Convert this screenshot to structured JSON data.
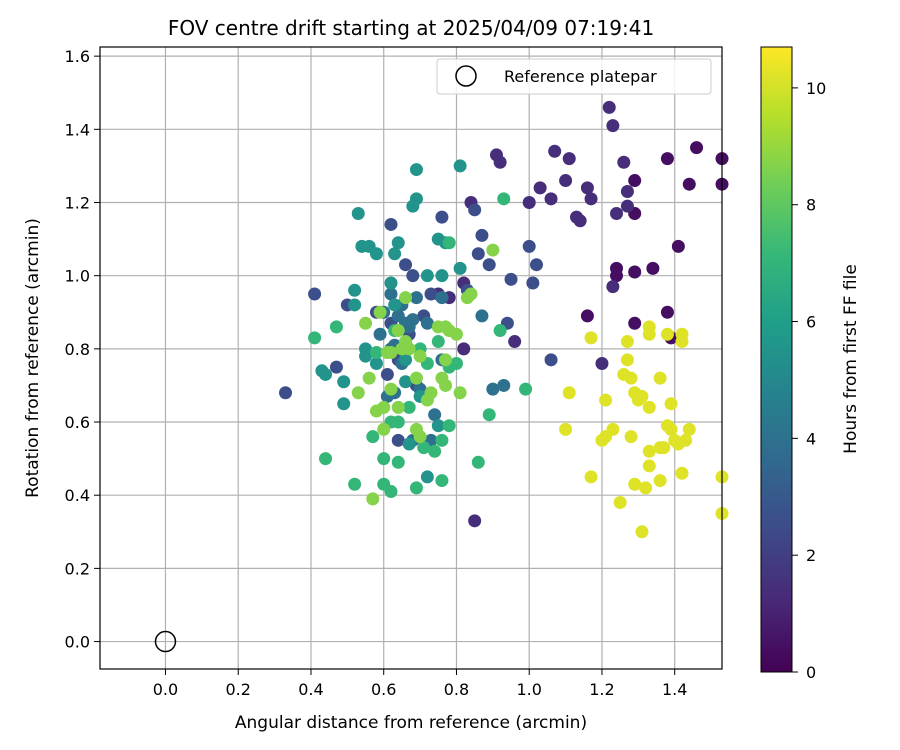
{
  "chart_data": {
    "type": "scatter",
    "title": "FOV centre drift starting at 2025/04/09 07:19:41",
    "xlabel": "Angular distance from reference (arcmin)",
    "ylabel": "Rotation from reference (arcmin)",
    "xlim": [
      -0.18,
      1.53
    ],
    "ylim": [
      -0.075,
      1.625
    ],
    "x_ticks": [
      0.0,
      0.2,
      0.4,
      0.6,
      0.8,
      1.0,
      1.2,
      1.4
    ],
    "y_ticks": [
      0.0,
      0.2,
      0.4,
      0.6,
      0.8,
      1.0,
      1.2,
      1.4,
      1.6
    ],
    "grid": true,
    "legend": {
      "position": "top-right",
      "entries": [
        "Reference platepar"
      ]
    },
    "reference_point": {
      "x": 0.0,
      "y": 0.0,
      "marker": "open-circle"
    },
    "colorbar": {
      "label": "Hours from first FF file",
      "colormap": "viridis",
      "range": [
        0,
        10.7
      ],
      "ticks": [
        0,
        2,
        4,
        6,
        8,
        10
      ]
    },
    "colormap_stops": [
      "#440154",
      "#482878",
      "#3e4989",
      "#31688e",
      "#26828e",
      "#1f9e89",
      "#35b779",
      "#6ece58",
      "#b5de2b",
      "#fde725"
    ],
    "point_sets": [
      {
        "hours": 0.4,
        "points": [
          [
            1.46,
            1.35
          ],
          [
            1.44,
            1.25
          ],
          [
            1.53,
            1.32
          ],
          [
            1.53,
            1.25
          ],
          [
            1.38,
            1.32
          ],
          [
            1.41,
            1.08
          ],
          [
            1.34,
            1.02
          ],
          [
            1.29,
            1.17
          ],
          [
            1.29,
            1.26
          ],
          [
            1.24,
            1.02
          ],
          [
            1.29,
            1.01
          ],
          [
            1.29,
            0.87
          ],
          [
            1.38,
            0.9
          ],
          [
            1.39,
            0.83
          ],
          [
            1.16,
            0.89
          ],
          [
            1.24,
            1.0
          ]
        ]
      },
      {
        "hours": 1.4,
        "points": [
          [
            1.22,
            1.46
          ],
          [
            1.23,
            1.41
          ],
          [
            1.26,
            1.31
          ],
          [
            1.27,
            1.23
          ],
          [
            1.27,
            1.19
          ],
          [
            1.24,
            1.17
          ],
          [
            1.16,
            1.24
          ],
          [
            1.17,
            1.21
          ],
          [
            1.13,
            1.16
          ],
          [
            1.14,
            1.15
          ],
          [
            1.1,
            1.26
          ],
          [
            1.11,
            1.32
          ],
          [
            1.07,
            1.34
          ],
          [
            1.06,
            1.21
          ],
          [
            1.03,
            1.24
          ],
          [
            1.0,
            1.2
          ],
          [
            0.91,
            1.33
          ],
          [
            0.92,
            1.31
          ],
          [
            0.84,
            1.2
          ],
          [
            0.82,
            0.98
          ],
          [
            0.78,
            0.94
          ],
          [
            0.82,
            0.8
          ],
          [
            0.96,
            0.82
          ],
          [
            1.23,
            0.97
          ],
          [
            1.2,
            0.76
          ],
          [
            0.85,
            0.33
          ],
          [
            0.75,
            0.95
          ]
        ]
      },
      {
        "hours": 2.6,
        "points": [
          [
            0.41,
            0.95
          ],
          [
            0.33,
            0.68
          ],
          [
            0.47,
            0.75
          ],
          [
            0.5,
            0.92
          ],
          [
            0.62,
            1.14
          ],
          [
            0.66,
            1.03
          ],
          [
            0.68,
            1.0
          ],
          [
            0.76,
            1.16
          ],
          [
            0.87,
            1.11
          ],
          [
            0.85,
            1.18
          ],
          [
            0.86,
            1.06
          ],
          [
            0.89,
            1.03
          ],
          [
            1.0,
            1.08
          ],
          [
            1.02,
            1.03
          ],
          [
            1.01,
            0.98
          ],
          [
            0.95,
            0.99
          ],
          [
            0.94,
            0.87
          ],
          [
            1.06,
            0.77
          ],
          [
            0.83,
            0.96
          ],
          [
            0.73,
            0.95
          ],
          [
            0.71,
            0.89
          ],
          [
            0.67,
            0.84
          ],
          [
            0.62,
            0.87
          ],
          [
            0.58,
            0.9
          ],
          [
            0.64,
            0.77
          ],
          [
            0.69,
            0.7
          ],
          [
            0.61,
            0.73
          ],
          [
            0.64,
            0.55
          ]
        ]
      },
      {
        "hours": 4.0,
        "points": [
          [
            0.6,
            0.9
          ],
          [
            0.64,
            0.89
          ],
          [
            0.67,
            0.86
          ],
          [
            0.66,
            0.87
          ],
          [
            0.65,
            0.92
          ],
          [
            0.68,
            0.88
          ],
          [
            0.69,
            0.94
          ],
          [
            0.62,
            0.95
          ],
          [
            0.62,
            0.8
          ],
          [
            0.59,
            0.84
          ],
          [
            0.65,
            0.76
          ],
          [
            0.63,
            0.81
          ],
          [
            0.72,
            0.87
          ],
          [
            0.63,
            0.68
          ],
          [
            0.7,
            0.69
          ],
          [
            0.76,
            0.77
          ],
          [
            0.74,
            0.62
          ],
          [
            0.68,
            0.55
          ],
          [
            0.73,
            0.55
          ],
          [
            0.9,
            0.69
          ],
          [
            0.93,
            0.7
          ],
          [
            0.87,
            0.89
          ],
          [
            0.76,
            0.94
          ],
          [
            0.61,
            0.67
          ]
        ]
      },
      {
        "hours": 5.5,
        "points": [
          [
            0.53,
            1.17
          ],
          [
            0.54,
            1.08
          ],
          [
            0.56,
            1.08
          ],
          [
            0.58,
            1.06
          ],
          [
            0.63,
            1.06
          ],
          [
            0.64,
            1.09
          ],
          [
            0.68,
            1.19
          ],
          [
            0.69,
            1.21
          ],
          [
            0.69,
            1.29
          ],
          [
            0.81,
            1.3
          ],
          [
            0.75,
            1.1
          ],
          [
            0.77,
            1.09
          ],
          [
            0.72,
            1.0
          ],
          [
            0.76,
            1.0
          ],
          [
            0.81,
            1.02
          ],
          [
            0.52,
            0.96
          ],
          [
            0.52,
            0.92
          ],
          [
            0.55,
            0.8
          ],
          [
            0.55,
            0.78
          ],
          [
            0.58,
            0.76
          ],
          [
            0.49,
            0.71
          ],
          [
            0.43,
            0.74
          ],
          [
            0.44,
            0.73
          ],
          [
            0.49,
            0.65
          ],
          [
            0.63,
            0.92
          ],
          [
            0.62,
            0.98
          ],
          [
            0.66,
            0.77
          ],
          [
            0.66,
            0.71
          ],
          [
            0.7,
            0.67
          ],
          [
            0.72,
            0.45
          ],
          [
            0.67,
            0.54
          ],
          [
            0.75,
            0.59
          ]
        ]
      },
      {
        "hours": 7.1,
        "points": [
          [
            0.41,
            0.83
          ],
          [
            0.47,
            0.86
          ],
          [
            0.44,
            0.5
          ],
          [
            0.52,
            0.43
          ],
          [
            0.57,
            0.56
          ],
          [
            0.6,
            0.5
          ],
          [
            0.6,
            0.43
          ],
          [
            0.62,
            0.41
          ],
          [
            0.64,
            0.49
          ],
          [
            0.64,
            0.6
          ],
          [
            0.67,
            0.64
          ],
          [
            0.69,
            0.42
          ],
          [
            0.71,
            0.53
          ],
          [
            0.76,
            0.44
          ],
          [
            0.76,
            0.55
          ],
          [
            0.78,
            0.59
          ],
          [
            0.74,
            0.52
          ],
          [
            0.7,
            0.8
          ],
          [
            0.72,
            0.76
          ],
          [
            0.75,
            0.82
          ],
          [
            0.78,
            0.75
          ],
          [
            0.8,
            0.76
          ],
          [
            0.86,
            0.49
          ],
          [
            0.89,
            0.62
          ],
          [
            0.92,
            0.85
          ],
          [
            0.93,
            1.21
          ],
          [
            0.99,
            0.69
          ],
          [
            0.78,
            1.09
          ],
          [
            0.63,
            0.85
          ],
          [
            0.58,
            0.79
          ],
          [
            0.62,
            0.6
          ]
        ]
      },
      {
        "hours": 8.7,
        "points": [
          [
            0.55,
            0.87
          ],
          [
            0.56,
            0.72
          ],
          [
            0.59,
            0.9
          ],
          [
            0.6,
            0.64
          ],
          [
            0.61,
            0.79
          ],
          [
            0.62,
            0.69
          ],
          [
            0.64,
            0.64
          ],
          [
            0.65,
            0.8
          ],
          [
            0.66,
            0.82
          ],
          [
            0.67,
            0.8
          ],
          [
            0.69,
            0.72
          ],
          [
            0.7,
            0.78
          ],
          [
            0.73,
            0.68
          ],
          [
            0.72,
            0.66
          ],
          [
            0.76,
            0.72
          ],
          [
            0.77,
            0.77
          ],
          [
            0.77,
            0.7
          ],
          [
            0.78,
            0.85
          ],
          [
            0.8,
            0.84
          ],
          [
            0.81,
            0.68
          ],
          [
            0.83,
            0.94
          ],
          [
            0.84,
            0.95
          ],
          [
            0.9,
            1.07
          ],
          [
            0.53,
            0.68
          ],
          [
            0.57,
            0.39
          ],
          [
            0.6,
            0.58
          ],
          [
            0.69,
            0.58
          ],
          [
            0.75,
            0.86
          ],
          [
            0.77,
            0.86
          ],
          [
            0.64,
            0.85
          ],
          [
            0.66,
            0.94
          ],
          [
            0.7,
            0.56
          ],
          [
            0.58,
            0.63
          ],
          [
            0.62,
            0.79
          ]
        ]
      },
      {
        "hours": 10.2,
        "points": [
          [
            1.1,
            0.58
          ],
          [
            1.11,
            0.68
          ],
          [
            1.17,
            0.45
          ],
          [
            1.17,
            0.83
          ],
          [
            1.2,
            0.55
          ],
          [
            1.21,
            0.56
          ],
          [
            1.21,
            0.66
          ],
          [
            1.23,
            0.58
          ],
          [
            1.25,
            0.38
          ],
          [
            1.26,
            0.73
          ],
          [
            1.27,
            0.77
          ],
          [
            1.27,
            0.82
          ],
          [
            1.28,
            0.72
          ],
          [
            1.28,
            0.56
          ],
          [
            1.29,
            0.68
          ],
          [
            1.29,
            0.43
          ],
          [
            1.3,
            0.66
          ],
          [
            1.31,
            0.3
          ],
          [
            1.31,
            0.67
          ],
          [
            1.32,
            0.42
          ],
          [
            1.33,
            0.86
          ],
          [
            1.33,
            0.84
          ],
          [
            1.33,
            0.64
          ],
          [
            1.33,
            0.52
          ],
          [
            1.33,
            0.48
          ],
          [
            1.36,
            0.44
          ],
          [
            1.36,
            0.53
          ],
          [
            1.36,
            0.72
          ],
          [
            1.37,
            0.53
          ],
          [
            1.38,
            0.84
          ],
          [
            1.38,
            0.59
          ],
          [
            1.39,
            0.65
          ],
          [
            1.39,
            0.58
          ],
          [
            1.4,
            0.55
          ],
          [
            1.41,
            0.54
          ],
          [
            1.42,
            0.82
          ],
          [
            1.42,
            0.46
          ],
          [
            1.42,
            0.84
          ],
          [
            1.43,
            0.55
          ],
          [
            1.44,
            0.58
          ],
          [
            1.53,
            0.45
          ],
          [
            1.53,
            0.35
          ]
        ]
      }
    ]
  }
}
